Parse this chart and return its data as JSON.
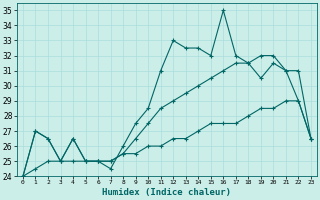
{
  "title": "",
  "xlabel": "Humidex (Indice chaleur)",
  "bg_color": "#cceee8",
  "grid_color": "#aadddd",
  "line_color": "#006666",
  "x": [
    0,
    1,
    2,
    3,
    4,
    5,
    6,
    7,
    8,
    9,
    10,
    11,
    12,
    13,
    14,
    15,
    16,
    17,
    18,
    19,
    20,
    21,
    22,
    23
  ],
  "line1": [
    24,
    27,
    26.5,
    25,
    26.5,
    25,
    25,
    24.5,
    26,
    27.5,
    28.5,
    31,
    33,
    32.5,
    32.5,
    32,
    35,
    32,
    31.5,
    30.5,
    31.5,
    31,
    29,
    26.5
  ],
  "line2": [
    24,
    27,
    26.5,
    25,
    26.5,
    25,
    25,
    25,
    25.5,
    26.5,
    27.5,
    28.5,
    29,
    29.5,
    30,
    30.5,
    31,
    31.5,
    31.5,
    32,
    32,
    31,
    31,
    26.5
  ],
  "line3": [
    24,
    24.5,
    25,
    25,
    25,
    25,
    25,
    25,
    25.5,
    25.5,
    26,
    26,
    26.5,
    26.5,
    27,
    27.5,
    27.5,
    27.5,
    28,
    28.5,
    28.5,
    29,
    29,
    26.5
  ],
  "ylim": [
    24,
    35.5
  ],
  "xlim": [
    -0.5,
    23.5
  ],
  "yticks": [
    24,
    25,
    26,
    27,
    28,
    29,
    30,
    31,
    32,
    33,
    34,
    35
  ],
  "xticks": [
    0,
    1,
    2,
    3,
    4,
    5,
    6,
    7,
    8,
    9,
    10,
    11,
    12,
    13,
    14,
    15,
    16,
    17,
    18,
    19,
    20,
    21,
    22,
    23
  ]
}
